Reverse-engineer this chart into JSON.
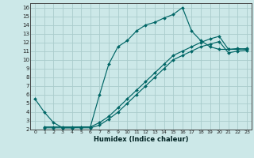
{
  "title": "",
  "xlabel": "Humidex (Indice chaleur)",
  "bg_color": "#cce8e8",
  "grid_color": "#aacccc",
  "line_color": "#006666",
  "xlim": [
    -0.5,
    23.5
  ],
  "ylim": [
    2,
    16.5
  ],
  "xticks": [
    0,
    1,
    2,
    3,
    4,
    5,
    6,
    7,
    8,
    9,
    10,
    11,
    12,
    13,
    14,
    15,
    16,
    17,
    18,
    19,
    20,
    21,
    22,
    23
  ],
  "yticks": [
    2,
    3,
    4,
    5,
    6,
    7,
    8,
    9,
    10,
    11,
    12,
    13,
    14,
    15,
    16
  ],
  "curve1_x": [
    0,
    1,
    2,
    3,
    4,
    5,
    6,
    7,
    8,
    9,
    10,
    11,
    12,
    13,
    14,
    15,
    16,
    17,
    18,
    19,
    20,
    21,
    22,
    23
  ],
  "curve1_y": [
    5.5,
    4.0,
    2.8,
    2.2,
    2.2,
    2.3,
    2.3,
    6.0,
    9.5,
    11.5,
    12.2,
    13.3,
    14.0,
    14.3,
    14.8,
    15.2,
    16.0,
    13.3,
    12.2,
    11.5,
    11.2,
    11.2,
    11.3,
    11.2
  ],
  "curve2_x": [
    1,
    2,
    3,
    4,
    5,
    6,
    7,
    8,
    9,
    10,
    11,
    12,
    13,
    14,
    15,
    16,
    17,
    18,
    19,
    20,
    21,
    22,
    23
  ],
  "curve2_y": [
    2.3,
    2.3,
    2.3,
    2.3,
    2.3,
    2.3,
    2.8,
    3.5,
    4.5,
    5.5,
    6.5,
    7.5,
    8.5,
    9.5,
    10.5,
    11.0,
    11.5,
    12.0,
    12.4,
    12.7,
    11.2,
    11.2,
    11.3
  ],
  "curve3_x": [
    1,
    2,
    3,
    4,
    5,
    6,
    7,
    8,
    9,
    10,
    11,
    12,
    13,
    14,
    15,
    16,
    17,
    18,
    19,
    20,
    21,
    22,
    23
  ],
  "curve3_y": [
    2.2,
    2.2,
    2.2,
    2.2,
    2.2,
    2.2,
    2.5,
    3.2,
    4.0,
    5.0,
    6.0,
    7.0,
    8.0,
    9.0,
    10.0,
    10.5,
    11.0,
    11.5,
    11.8,
    12.1,
    10.8,
    11.0,
    11.1
  ]
}
